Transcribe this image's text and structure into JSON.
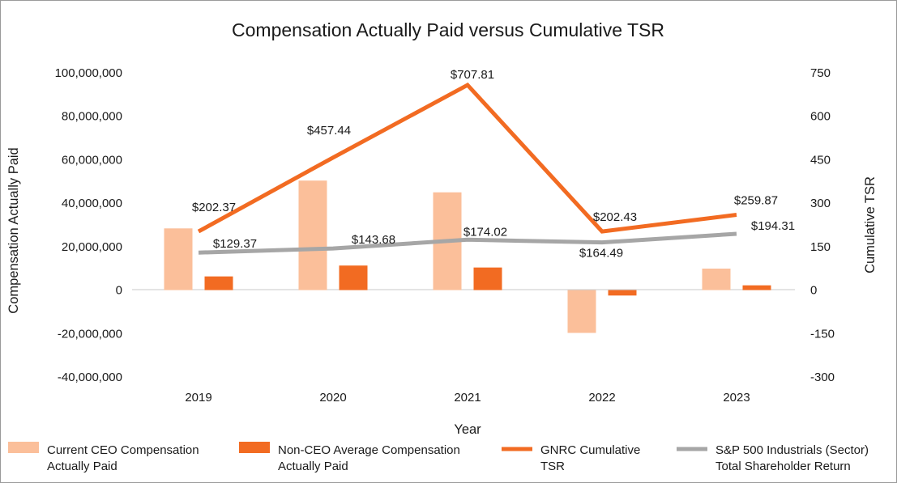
{
  "chart_data": {
    "type": "bar",
    "title": "Compensation Actually Paid versus Cumulative TSR",
    "xlabel": "Year",
    "ylabel": "Compensation Actually Paid",
    "y2label": "Cumulative TSR",
    "categories": [
      "2019",
      "2020",
      "2021",
      "2022",
      "2023"
    ],
    "ylim": [
      -40000000,
      100000000
    ],
    "yticks": [
      100000000,
      80000000,
      60000000,
      40000000,
      20000000,
      0,
      -20000000,
      -40000000
    ],
    "ytick_labels": [
      "100,000,000",
      "80,000,000",
      "60,000,000",
      "40,000,000",
      "20,000,000",
      "0",
      "-20,000,000",
      "-40,000,000"
    ],
    "y2lim": [
      -300,
      750
    ],
    "y2ticks": [
      750,
      600,
      450,
      300,
      150,
      0,
      -150,
      -300
    ],
    "y2tick_labels": [
      "750",
      "600",
      "450",
      "300",
      "150",
      "0",
      "-150",
      "-300"
    ],
    "bar_series": [
      {
        "name": "Current CEO Compensation Actually Paid",
        "legend_lines": [
          "Current CEO Compensation",
          "Actually Paid"
        ],
        "color": "#fbbf9a",
        "values": [
          28400000,
          50400000,
          45000000,
          -19700000,
          9900000
        ]
      },
      {
        "name": "Non-CEO Average Compensation Actually Paid",
        "legend_lines": [
          "Non-CEO Average Compensation",
          "Actually Paid"
        ],
        "color": "#f26b22",
        "values": [
          6300000,
          11300000,
          10400000,
          -2500000,
          2200000
        ]
      }
    ],
    "line_series": [
      {
        "name": "GNRC Cumulative TSR",
        "legend_lines": [
          "GNRC Cumulative",
          "TSR"
        ],
        "color": "#f26b22",
        "axis": "y2",
        "values": [
          202.37,
          457.44,
          707.81,
          202.43,
          259.87
        ],
        "labels": [
          "$202.37",
          "$457.44",
          "$707.81",
          "$202.43",
          "$259.87"
        ]
      },
      {
        "name": "S&P 500 Industrials (Sector) Total Shareholder Return",
        "legend_lines": [
          "S&P 500 Industrials (Sector)",
          "Total Shareholder Return"
        ],
        "color": "#a6a6a6",
        "axis": "y2",
        "values": [
          129.37,
          143.68,
          174.02,
          164.49,
          194.31
        ],
        "labels": [
          "$129.37",
          "$143.68",
          "$174.02",
          "$164.49",
          "$194.31"
        ]
      }
    ]
  }
}
